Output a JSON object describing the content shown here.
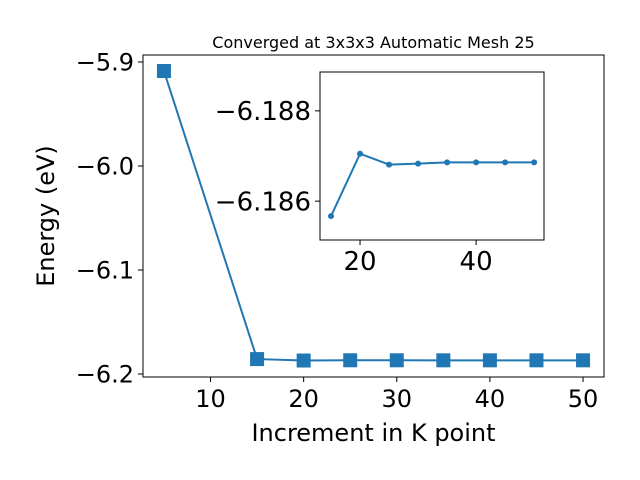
{
  "chart_data": [
    {
      "type": "line",
      "title": "Converged at 3x3x3 Automatic Mesh 25",
      "xlabel": "Increment in K point",
      "ylabel": "Energy (eV)",
      "x": [
        5,
        15,
        20,
        25,
        30,
        35,
        40,
        45,
        50
      ],
      "values": [
        -5.9087,
        -6.18567,
        -6.18705,
        -6.18681,
        -6.18683,
        -6.18686,
        -6.18686,
        -6.18686,
        -6.18686
      ],
      "color": "#1f77b4",
      "marker": "square",
      "xlim": [
        2.75,
        52.25
      ],
      "xticks": [
        10,
        20,
        30,
        40,
        50
      ],
      "ylim": [
        -6.2029,
        -5.8933
      ],
      "yticks": [
        {
          "value": -6.2,
          "label": "−6.2"
        },
        {
          "value": -6.1,
          "label": "−6.1"
        },
        {
          "value": -6.0,
          "label": "−6.0"
        },
        {
          "value": -5.9,
          "label": "−5.9"
        }
      ]
    },
    {
      "type": "line",
      "x": [
        15,
        20,
        25,
        30,
        35,
        40,
        45,
        50
      ],
      "values": [
        -6.18567,
        -6.18705,
        -6.18681,
        -6.18683,
        -6.18686,
        -6.18686,
        -6.18686,
        -6.18686
      ],
      "color": "#1f77b4",
      "marker": "circle",
      "xlim": [
        13.1,
        51.7
      ],
      "xticks": [
        20,
        40
      ],
      "ylim": [
        -6.18514,
        -6.18886
      ],
      "yticks": [
        {
          "value": -6.186,
          "label": "−6.186"
        },
        {
          "value": -6.188,
          "label": "−6.188"
        }
      ]
    }
  ]
}
